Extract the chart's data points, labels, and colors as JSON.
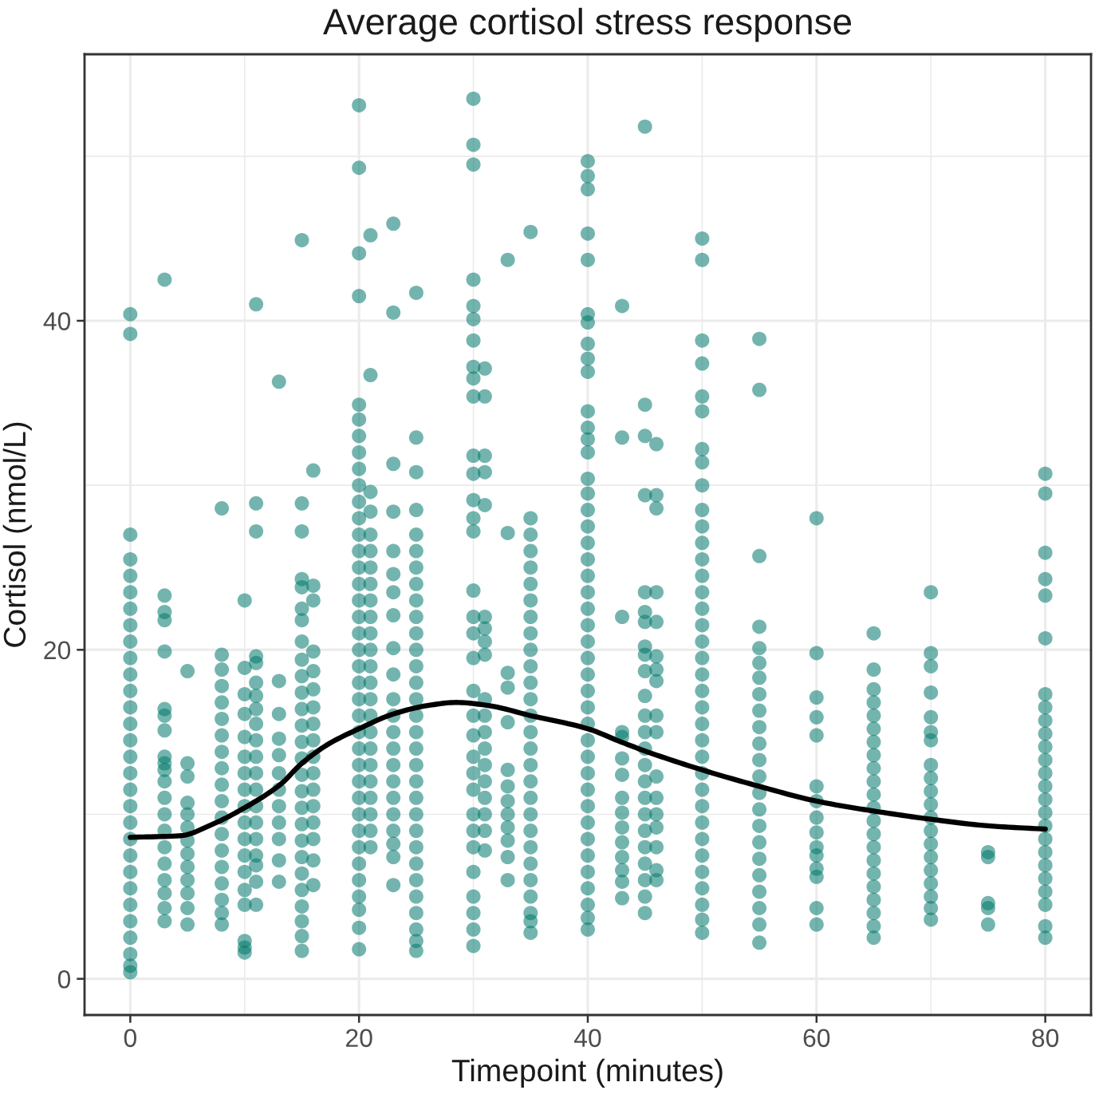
{
  "chart_data": {
    "type": "scatter",
    "title": "Average cortisol stress response",
    "xlabel": "Timepoint (minutes)",
    "ylabel": "Cortisol (nmol/L)",
    "xlim": [
      -4,
      84
    ],
    "xticks": [
      0,
      20,
      40,
      60,
      80
    ],
    "ylim": [
      -2.2,
      56.2
    ],
    "yticks": [
      0,
      20,
      40
    ],
    "grid": true,
    "series": [
      {
        "color": "#00796b",
        "marker": "circle",
        "x": [
          0,
          0,
          0,
          0,
          0,
          0,
          0,
          0,
          0,
          0,
          0,
          0,
          0,
          0,
          0,
          0,
          0,
          0,
          0,
          0,
          0,
          0,
          0,
          0,
          0,
          0,
          0,
          0,
          0,
          0,
          3,
          3,
          3,
          3,
          3,
          3,
          3,
          3,
          3,
          3,
          3,
          3,
          3,
          3,
          3,
          3,
          3,
          3,
          3,
          3,
          3,
          5,
          5,
          5,
          5,
          5,
          5,
          5,
          5,
          5,
          5,
          5,
          5,
          5,
          8,
          8,
          8,
          8,
          8,
          8,
          8,
          8,
          8,
          8,
          8,
          8,
          8,
          8,
          8,
          8,
          8,
          8,
          8,
          10,
          10,
          10,
          10,
          10,
          10,
          10,
          10,
          10,
          10,
          10,
          10,
          10,
          10,
          10,
          10,
          10,
          10,
          11,
          11,
          11,
          11,
          11,
          11,
          11,
          11,
          11,
          11,
          11,
          11,
          11,
          11,
          11,
          11,
          11,
          11,
          11,
          11,
          13,
          13,
          13,
          13,
          13,
          13,
          13,
          13,
          13,
          13,
          13,
          13,
          15,
          15,
          15,
          15,
          15,
          15,
          15,
          15,
          15,
          15,
          15,
          15,
          15,
          15,
          15,
          15,
          15,
          15,
          15,
          15,
          15,
          15,
          15,
          15,
          15,
          15,
          15,
          16,
          16,
          16,
          16,
          16,
          16,
          16,
          16,
          16,
          16,
          16,
          16,
          16,
          16,
          16,
          16,
          16,
          20,
          20,
          20,
          20,
          20,
          20,
          20,
          20,
          20,
          20,
          20,
          20,
          20,
          20,
          20,
          20,
          20,
          20,
          20,
          20,
          20,
          20,
          20,
          20,
          20,
          20,
          20,
          20,
          20,
          20,
          20,
          20,
          20,
          20,
          20,
          20,
          20,
          20,
          21,
          21,
          21,
          21,
          21,
          21,
          21,
          21,
          21,
          21,
          21,
          21,
          21,
          21,
          21,
          21,
          21,
          21,
          21,
          21,
          21,
          21,
          21,
          21,
          23,
          23,
          23,
          23,
          23,
          23,
          23,
          23,
          23,
          23,
          23,
          23,
          23,
          23,
          23,
          23,
          23,
          23,
          23,
          23,
          23,
          23,
          25,
          25,
          25,
          25,
          25,
          25,
          25,
          25,
          25,
          25,
          25,
          25,
          25,
          25,
          25,
          25,
          25,
          25,
          25,
          25,
          25,
          25,
          25,
          25,
          25,
          25,
          25,
          25,
          25,
          25,
          25,
          30,
          30,
          30,
          30,
          30,
          30,
          30,
          30,
          30,
          30,
          30,
          30,
          30,
          30,
          30,
          30,
          30,
          30,
          30,
          30,
          30,
          30,
          30,
          30,
          30,
          30,
          30,
          30,
          30,
          30,
          30,
          30,
          30,
          31,
          31,
          31,
          31,
          31,
          31,
          31,
          31,
          31,
          31,
          31,
          31,
          31,
          31,
          31,
          31,
          31,
          31,
          31,
          33,
          33,
          33,
          33,
          33,
          33,
          33,
          33,
          33,
          33,
          33,
          33,
          33,
          35,
          35,
          35,
          35,
          35,
          35,
          35,
          35,
          35,
          35,
          35,
          35,
          35,
          35,
          35,
          35,
          35,
          35,
          35,
          35,
          35,
          35,
          35,
          35,
          35,
          35,
          35,
          35,
          40,
          40,
          40,
          40,
          40,
          40,
          40,
          40,
          40,
          40,
          40,
          40,
          40,
          40,
          40,
          40,
          40,
          40,
          40,
          40,
          40,
          40,
          40,
          40,
          40,
          40,
          40,
          40,
          40,
          40,
          40,
          40,
          40,
          40,
          40,
          40,
          40,
          40,
          40,
          40,
          40,
          40,
          40,
          43,
          43,
          43,
          43,
          43,
          43,
          43,
          43,
          43,
          43,
          43,
          43,
          43,
          43,
          43,
          45,
          45,
          45,
          45,
          45,
          45,
          45,
          45,
          45,
          45,
          45,
          45,
          45,
          45,
          45,
          45,
          45,
          45,
          45,
          45,
          45,
          45,
          45,
          45,
          46,
          46,
          46,
          46,
          46,
          46,
          46,
          46,
          46,
          46,
          46,
          46,
          46,
          46,
          46,
          46,
          46,
          50,
          50,
          50,
          50,
          50,
          50,
          50,
          50,
          50,
          50,
          50,
          50,
          50,
          50,
          50,
          50,
          50,
          50,
          50,
          50,
          50,
          50,
          50,
          50,
          50,
          50,
          50,
          50,
          50,
          50,
          50,
          50,
          50,
          50,
          50,
          50,
          55,
          55,
          55,
          55,
          55,
          55,
          55,
          55,
          55,
          55,
          55,
          55,
          55,
          55,
          55,
          55,
          55,
          55,
          55,
          55,
          55,
          55,
          55,
          60,
          60,
          60,
          60,
          60,
          60,
          60,
          60,
          60,
          60,
          60,
          60,
          60,
          60,
          60,
          65,
          65,
          65,
          65,
          65,
          65,
          65,
          65,
          65,
          65,
          65,
          65,
          65,
          65,
          65,
          65,
          65,
          65,
          65,
          65,
          65,
          65,
          70,
          70,
          70,
          70,
          70,
          70,
          70,
          70,
          70,
          70,
          70,
          70,
          70,
          70,
          70,
          70,
          70,
          70,
          70,
          70,
          75,
          75,
          75,
          75,
          75,
          80,
          80,
          80,
          80,
          80,
          80,
          80,
          80,
          80,
          80,
          80,
          80,
          80,
          80,
          80,
          80,
          80,
          80,
          80,
          80,
          80,
          80,
          80,
          80,
          80
        ],
        "values": [
          40.4,
          39.2,
          27.0,
          25.5,
          24.5,
          23.5,
          22.5,
          21.5,
          20.5,
          19.5,
          18.5,
          17.5,
          16.5,
          15.5,
          14.5,
          13.5,
          12.5,
          11.5,
          10.5,
          9.5,
          8.5,
          7.5,
          6.5,
          5.5,
          4.5,
          3.5,
          2.5,
          1.5,
          0.8,
          0.4,
          42.5,
          23.3,
          22.3,
          21.8,
          19.9,
          16.4,
          16.0,
          15.1,
          13.5,
          13.1,
          12.7,
          12.0,
          11.0,
          10.0,
          9.0,
          8.0,
          7.0,
          6.0,
          5.2,
          4.3,
          3.5,
          18.7,
          13.1,
          12.3,
          10.7,
          10.0,
          9.2,
          8.4,
          7.6,
          6.8,
          6.0,
          5.2,
          4.3,
          3.3,
          28.6,
          19.7,
          18.8,
          17.8,
          16.8,
          15.8,
          14.8,
          13.8,
          12.8,
          11.8,
          10.8,
          9.8,
          8.8,
          7.8,
          6.8,
          5.8,
          4.8,
          4.0,
          3.3,
          23.0,
          18.9,
          17.3,
          16.1,
          14.7,
          13.5,
          12.5,
          11.5,
          10.5,
          9.5,
          8.5,
          7.5,
          6.5,
          5.4,
          4.5,
          2.3,
          1.9,
          1.6,
          41.0,
          28.9,
          27.2,
          19.6,
          19.2,
          18.0,
          17.2,
          16.4,
          15.5,
          14.5,
          13.5,
          12.5,
          11.5,
          10.5,
          9.5,
          8.5,
          7.5,
          6.9,
          5.9,
          4.5,
          36.3,
          18.1,
          16.1,
          14.6,
          13.6,
          12.5,
          11.5,
          10.5,
          9.5,
          8.5,
          7.2,
          5.9,
          44.9,
          28.9,
          27.2,
          24.3,
          23.8,
          22.5,
          21.8,
          20.5,
          19.4,
          18.4,
          17.4,
          16.4,
          15.4,
          14.4,
          13.4,
          12.4,
          11.4,
          10.4,
          9.4,
          8.4,
          7.4,
          6.4,
          5.4,
          4.4,
          3.5,
          2.6,
          1.7,
          30.9,
          23.9,
          23.0,
          19.9,
          18.7,
          17.6,
          16.5,
          15.5,
          14.5,
          13.5,
          12.5,
          11.5,
          10.5,
          9.5,
          8.5,
          7.2,
          5.7,
          53.1,
          49.3,
          44.1,
          41.5,
          34.9,
          34.0,
          33.0,
          32.0,
          31.0,
          30.0,
          29.0,
          28.0,
          27.0,
          26.0,
          25.0,
          24.0,
          23.0,
          22.0,
          21.0,
          20.0,
          19.0,
          18.0,
          17.0,
          16.0,
          15.0,
          14.0,
          13.0,
          12.0,
          11.0,
          10.0,
          9.0,
          8.0,
          7.0,
          6.0,
          5.0,
          4.2,
          3.1,
          1.8,
          45.2,
          36.7,
          29.6,
          28.4,
          27.0,
          26.0,
          25.0,
          24.0,
          23.0,
          22.0,
          21.0,
          20.0,
          19.0,
          18.0,
          17.0,
          16.0,
          15.0,
          14.0,
          13.0,
          12.0,
          11.0,
          10.0,
          9.0,
          8.0,
          45.9,
          40.5,
          31.3,
          28.4,
          26.0,
          24.6,
          23.5,
          22.1,
          20.1,
          18.5,
          17.0,
          16.0,
          15.0,
          14.0,
          13.0,
          12.0,
          11.0,
          10.0,
          9.0,
          8.2,
          7.4,
          5.7,
          41.7,
          32.9,
          30.8,
          28.5,
          27.0,
          26.0,
          25.0,
          24.0,
          23.0,
          22.0,
          21.0,
          20.0,
          19.0,
          18.0,
          17.0,
          16.0,
          15.0,
          14.0,
          13.0,
          12.0,
          11.0,
          10.0,
          9.0,
          8.0,
          7.0,
          6.0,
          5.0,
          4.0,
          3.0,
          2.3,
          1.7,
          53.5,
          50.7,
          49.5,
          42.5,
          40.9,
          40.1,
          38.8,
          37.2,
          36.5,
          35.4,
          31.8,
          30.7,
          29.1,
          28.0,
          27.2,
          23.6,
          22.0,
          21.0,
          19.5,
          17.5,
          16.0,
          14.8,
          13.5,
          12.5,
          11.5,
          10.0,
          9.0,
          8.0,
          6.5,
          5.0,
          4.0,
          3.0,
          2.0,
          37.1,
          35.4,
          31.8,
          30.8,
          28.8,
          22.0,
          21.3,
          20.5,
          19.7,
          17.0,
          16.0,
          15.0,
          14.0,
          13.0,
          12.0,
          11.0,
          10.0,
          9.0,
          7.8,
          43.7,
          27.1,
          18.6,
          17.7,
          15.6,
          12.7,
          11.7,
          10.8,
          10.0,
          9.2,
          8.4,
          7.4,
          6.0,
          45.4,
          28.0,
          27.0,
          26.0,
          25.0,
          24.0,
          23.0,
          22.0,
          21.0,
          20.0,
          19.0,
          18.0,
          17.0,
          16.0,
          15.0,
          14.0,
          13.0,
          12.0,
          11.0,
          10.0,
          9.0,
          8.0,
          7.0,
          6.0,
          5.0,
          4.0,
          3.5,
          2.8,
          49.7,
          48.8,
          48.0,
          45.3,
          43.7,
          40.4,
          39.9,
          38.6,
          37.7,
          36.9,
          34.5,
          33.5,
          32.8,
          32.0,
          30.4,
          29.5,
          28.5,
          27.5,
          26.5,
          25.5,
          24.5,
          23.5,
          22.5,
          21.5,
          20.5,
          19.5,
          18.5,
          17.5,
          16.5,
          15.5,
          14.5,
          13.5,
          12.5,
          11.5,
          10.5,
          9.5,
          8.5,
          7.5,
          6.5,
          5.5,
          4.5,
          3.7,
          3.0,
          40.9,
          32.9,
          22.0,
          15.0,
          14.7,
          13.4,
          12.4,
          11.0,
          10.1,
          9.2,
          8.3,
          7.4,
          6.6,
          5.9,
          4.9,
          51.8,
          34.9,
          33.0,
          29.4,
          23.5,
          22.3,
          21.7,
          20.2,
          19.7,
          18.7,
          17.2,
          16.0,
          15.0,
          14.0,
          13.0,
          12.0,
          11.0,
          10.0,
          9.0,
          8.0,
          7.0,
          6.0,
          5.0,
          4.0,
          32.5,
          29.4,
          28.6,
          23.5,
          21.7,
          19.6,
          18.8,
          18.1,
          16.0,
          15.0,
          12.3,
          11.0,
          10.0,
          9.2,
          8.0,
          6.6,
          6.0,
          45.0,
          43.7,
          38.8,
          37.4,
          35.4,
          34.5,
          32.2,
          31.4,
          30.0,
          28.5,
          27.5,
          26.5,
          25.5,
          24.5,
          23.5,
          22.5,
          21.5,
          20.5,
          19.5,
          18.5,
          17.5,
          16.5,
          15.5,
          14.5,
          13.5,
          12.5,
          11.5,
          10.5,
          9.5,
          8.5,
          7.5,
          6.5,
          5.5,
          4.5,
          3.6,
          2.8,
          38.9,
          35.8,
          25.7,
          21.4,
          20.1,
          19.2,
          18.3,
          17.3,
          16.3,
          15.3,
          14.3,
          13.3,
          12.3,
          11.3,
          10.3,
          9.3,
          8.3,
          7.3,
          6.3,
          5.3,
          4.3,
          3.3,
          2.2,
          28.0,
          19.8,
          17.1,
          15.9,
          14.8,
          11.7,
          10.8,
          9.8,
          8.9,
          8.0,
          7.5,
          6.7,
          6.2,
          4.3,
          3.3,
          21.0,
          18.8,
          17.6,
          16.8,
          16.0,
          15.2,
          14.4,
          13.6,
          12.8,
          12.0,
          11.2,
          10.4,
          9.6,
          8.8,
          8.0,
          7.2,
          6.4,
          5.6,
          4.8,
          4.0,
          3.2,
          2.5,
          23.5,
          19.8,
          19.0,
          17.4,
          15.9,
          15.0,
          14.5,
          13.0,
          12.2,
          11.4,
          10.6,
          9.8,
          9.0,
          8.2,
          7.4,
          6.6,
          5.8,
          5.0,
          4.3,
          3.6,
          7.7,
          7.4,
          4.6,
          4.3,
          3.3,
          30.7,
          29.5,
          25.9,
          24.3,
          23.3,
          20.7,
          17.3,
          16.5,
          15.7,
          14.9,
          14.1,
          13.3,
          12.5,
          11.7,
          10.9,
          10.1,
          9.3,
          8.5,
          7.7,
          6.9,
          6.1,
          5.3,
          4.5,
          3.2,
          2.5
        ]
      },
      {
        "type": "line",
        "color": "#000000",
        "line_style": "solid",
        "x": [
          0,
          4.4,
          7.2,
          10,
          13.1,
          15,
          17.4,
          20,
          23,
          25.9,
          28.5,
          31.4,
          35,
          40,
          42.9,
          45.2,
          50,
          55,
          60,
          65,
          70,
          75,
          80
        ],
        "values": [
          8.6,
          8.7,
          9.4,
          10.4,
          11.8,
          13.1,
          14.3,
          15.2,
          16.1,
          16.6,
          16.8,
          16.6,
          16.0,
          15.2,
          14.4,
          13.8,
          12.7,
          11.7,
          10.8,
          10.2,
          9.7,
          9.3,
          9.1
        ]
      }
    ]
  }
}
